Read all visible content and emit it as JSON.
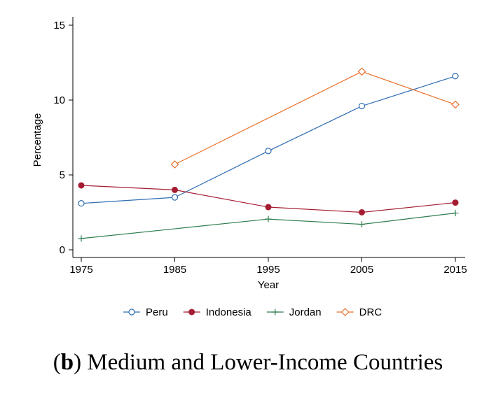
{
  "chart_data": {
    "type": "line",
    "xlabel": "Year",
    "ylabel": "Percentage",
    "x": [
      1975,
      1985,
      1995,
      2005,
      2015
    ],
    "xlim": [
      1975,
      2015
    ],
    "ylim": [
      0,
      15
    ],
    "xticks": [
      "1975",
      "1985",
      "1995",
      "2005",
      "2015"
    ],
    "yticks": [
      "0",
      "5",
      "10",
      "15"
    ],
    "grid": false,
    "legend_position": "bottom",
    "series": [
      {
        "name": "Peru",
        "color": "#2f6db4",
        "marker": "circle-open",
        "values": [
          3.1,
          3.5,
          6.6,
          9.6,
          11.6
        ]
      },
      {
        "name": "Indonesia",
        "color": "#a51c30",
        "marker": "circle-filled",
        "values": [
          4.3,
          4.0,
          2.85,
          2.5,
          3.15
        ]
      },
      {
        "name": "Jordan",
        "color": "#2e7d4f",
        "marker": "plus",
        "values": [
          0.75,
          null,
          2.05,
          1.7,
          2.45
        ]
      },
      {
        "name": "DRC",
        "color": "#e8702a",
        "marker": "diamond-open",
        "values": [
          null,
          5.7,
          null,
          11.9,
          9.7
        ]
      }
    ]
  },
  "caption": {
    "label": "b",
    "text": "Medium and Lower-Income Countries"
  }
}
